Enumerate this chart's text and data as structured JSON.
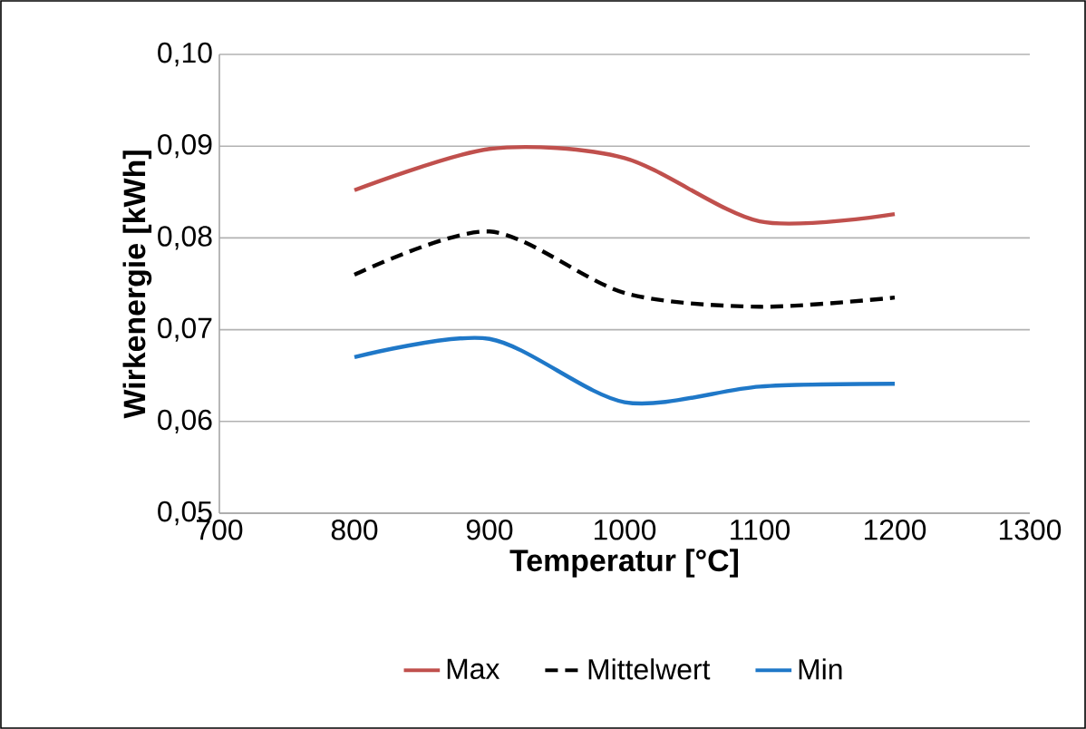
{
  "chart_data": {
    "type": "line",
    "xlabel": "Temperatur [°C]",
    "ylabel": "Wirkenergie [kWh]",
    "x": [
      800,
      900,
      1000,
      1100,
      1200
    ],
    "series": [
      {
        "name": "Max",
        "color": "#c0504d",
        "line_style": "solid",
        "values": [
          0.0852,
          0.0897,
          0.0887,
          0.0818,
          0.0826
        ]
      },
      {
        "name": "Mittelwert",
        "color": "#000000",
        "line_style": "dashed",
        "values": [
          0.076,
          0.0807,
          0.074,
          0.0725,
          0.0735
        ]
      },
      {
        "name": "Min",
        "color": "#1f78c8",
        "line_style": "solid",
        "values": [
          0.067,
          0.069,
          0.0621,
          0.0638,
          0.0641
        ]
      }
    ],
    "xlim": [
      700,
      1300
    ],
    "xticks": [
      700,
      800,
      900,
      1000,
      1100,
      1200,
      1300
    ],
    "ylim": [
      0.05,
      0.1
    ],
    "yticks": [
      {
        "value": 0.05,
        "label": "0,05"
      },
      {
        "value": 0.06,
        "label": "0,06"
      },
      {
        "value": 0.07,
        "label": "0,07"
      },
      {
        "value": 0.08,
        "label": "0,08"
      },
      {
        "value": 0.09,
        "label": "0,09"
      },
      {
        "value": 0.1,
        "label": "0,10"
      }
    ],
    "grid": "y",
    "legend": "bottom",
    "marker": "none"
  }
}
